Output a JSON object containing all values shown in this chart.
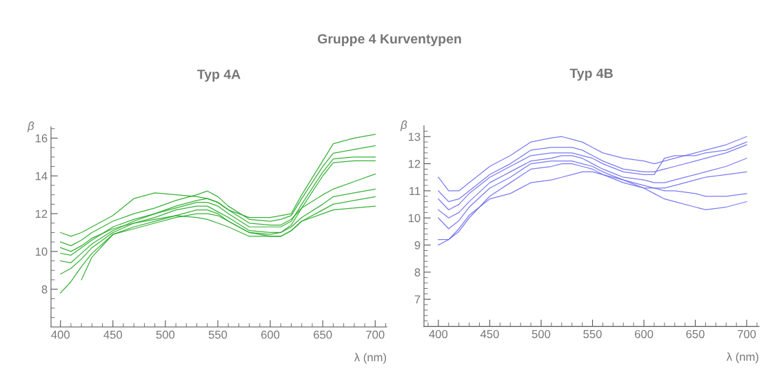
{
  "chart_data": [
    {
      "type": "line",
      "title": "Typ 4A",
      "xlabel": "λ (nm)",
      "ylabel": "β",
      "annotations": [
        "Gruppe 4 Kurventypen"
      ],
      "x": [
        400,
        410,
        420,
        430,
        450,
        470,
        490,
        510,
        530,
        540,
        550,
        560,
        580,
        600,
        610,
        620,
        630,
        650,
        660,
        680,
        700
      ],
      "series": [
        {
          "color": "#1fa81f",
          "values": [
            11.0,
            10.8,
            11.0,
            11.3,
            11.9,
            12.8,
            13.1,
            13.0,
            12.9,
            12.8,
            12.6,
            12.2,
            11.8,
            11.8,
            11.9,
            12.0,
            13.0,
            14.8,
            15.7,
            16.0,
            16.2
          ]
        },
        {
          "color": "#1fa81f",
          "values": [
            10.5,
            10.3,
            10.6,
            11.0,
            11.6,
            12.0,
            12.3,
            12.7,
            13.0,
            13.2,
            12.9,
            12.4,
            11.7,
            11.6,
            11.7,
            11.9,
            12.8,
            14.5,
            15.2,
            15.4,
            15.6
          ]
        },
        {
          "color": "#1fa81f",
          "values": [
            9.5,
            9.4,
            9.9,
            10.4,
            11.1,
            11.6,
            12.0,
            12.3,
            12.6,
            12.6,
            12.4,
            12.0,
            11.3,
            11.3,
            11.3,
            11.6,
            12.5,
            14.2,
            14.9,
            15.0,
            15.0
          ]
        },
        {
          "color": "#1fa81f",
          "values": [
            8.8,
            9.1,
            9.6,
            10.2,
            11.0,
            11.5,
            11.8,
            12.2,
            12.4,
            12.4,
            12.1,
            11.8,
            11.1,
            11.0,
            11.0,
            11.4,
            12.3,
            14.0,
            14.7,
            14.8,
            14.8
          ]
        },
        {
          "color": "#1fa81f",
          "values": [
            7.8,
            8.4,
            9.2,
            9.9,
            10.9,
            11.3,
            11.6,
            11.9,
            12.2,
            12.2,
            12.0,
            11.6,
            11.0,
            10.9,
            11.0,
            11.3,
            11.8,
            12.5,
            12.9,
            13.1,
            13.3
          ]
        },
        {
          "color": "#1fa81f",
          "values": [
            null,
            null,
            8.5,
            9.7,
            10.9,
            11.2,
            11.5,
            11.8,
            12.0,
            12.0,
            11.9,
            11.6,
            11.0,
            10.8,
            10.8,
            11.1,
            11.6,
            12.0,
            12.2,
            12.3,
            12.4
          ]
        },
        {
          "color": "#1fa81f",
          "values": [
            10.2,
            10.0,
            10.3,
            10.7,
            11.2,
            11.5,
            11.7,
            11.9,
            11.8,
            11.7,
            11.5,
            11.3,
            10.8,
            10.8,
            10.8,
            11.1,
            11.6,
            12.2,
            12.5,
            12.7,
            12.9
          ]
        },
        {
          "color": "#1fa81f",
          "values": [
            9.9,
            9.8,
            10.2,
            10.6,
            11.3,
            11.7,
            12.0,
            12.4,
            12.7,
            12.8,
            12.6,
            12.2,
            11.5,
            11.4,
            11.4,
            11.7,
            12.3,
            13.0,
            13.3,
            13.7,
            14.1
          ]
        }
      ],
      "xlim": [
        391,
        711
      ],
      "ylim": [
        6.0,
        16.6
      ],
      "xticks": [
        400,
        {
          "value": 410,
          "label": null
        },
        {
          "value": 420,
          "label": null
        },
        {
          "value": 430,
          "label": null
        },
        {
          "value": 440,
          "label": null
        },
        450,
        {
          "value": 460,
          "label": null
        },
        {
          "value": 470,
          "label": null
        },
        {
          "value": 480,
          "label": null
        },
        {
          "value": 490,
          "label": null
        },
        500,
        {
          "value": 510,
          "label": null
        },
        {
          "value": 520,
          "label": null
        },
        {
          "value": 530,
          "label": null
        },
        {
          "value": 540,
          "label": null
        },
        550,
        {
          "value": 560,
          "label": null
        },
        {
          "value": 570,
          "label": null
        },
        {
          "value": 580,
          "label": null
        },
        {
          "value": 590,
          "label": null
        },
        600,
        {
          "value": 610,
          "label": null
        },
        {
          "value": 620,
          "label": null
        },
        {
          "value": 630,
          "label": null
        },
        {
          "value": 640,
          "label": null
        },
        650,
        {
          "value": 660,
          "label": null
        },
        {
          "value": 670,
          "label": null
        },
        {
          "value": 680,
          "label": null
        },
        {
          "value": 690,
          "label": null
        },
        700,
        {
          "value": 710,
          "label": null
        }
      ],
      "yticks": [
        {
          "value": 6.5,
          "label": null
        },
        {
          "value": 7,
          "label": null
        },
        {
          "value": 7.5,
          "label": null
        },
        8,
        {
          "value": 8.5,
          "label": null
        },
        {
          "value": 9,
          "label": null
        },
        {
          "value": 9.5,
          "label": null
        },
        10,
        {
          "value": 10.5,
          "label": null
        },
        {
          "value": 11,
          "label": null
        },
        {
          "value": 11.5,
          "label": null
        },
        12,
        {
          "value": 12.5,
          "label": null
        },
        {
          "value": 13,
          "label": null
        },
        {
          "value": 13.5,
          "label": null
        },
        14,
        {
          "value": 14.5,
          "label": null
        },
        {
          "value": 15,
          "label": null
        },
        {
          "value": 15.5,
          "label": null
        },
        16,
        {
          "value": 16.5,
          "label": null
        }
      ],
      "grid": false,
      "legend": false,
      "marker": "none",
      "line_style": "solid"
    },
    {
      "type": "line",
      "title": "Typ 4B",
      "xlabel": "λ (nm)",
      "ylabel": "β",
      "x": [
        400,
        410,
        420,
        430,
        450,
        470,
        490,
        510,
        520,
        530,
        540,
        550,
        560,
        580,
        600,
        610,
        620,
        630,
        650,
        660,
        680,
        700
      ],
      "series": [
        {
          "color": "#6b6bf0",
          "values": [
            11.5,
            11.0,
            11.0,
            11.3,
            11.9,
            12.3,
            12.8,
            12.95,
            13.0,
            12.9,
            12.8,
            12.6,
            12.4,
            12.2,
            12.1,
            12.0,
            12.1,
            12.2,
            12.4,
            12.5,
            12.7,
            13.0
          ]
        },
        {
          "color": "#6b6bf0",
          "values": [
            11.0,
            10.6,
            10.7,
            11.0,
            11.6,
            12.0,
            12.5,
            12.6,
            12.6,
            12.6,
            12.5,
            12.3,
            12.1,
            11.8,
            11.7,
            11.7,
            11.8,
            11.9,
            12.1,
            12.2,
            12.4,
            12.7
          ]
        },
        {
          "color": "#6b6bf0",
          "values": [
            10.3,
            10.0,
            10.2,
            10.6,
            11.3,
            11.7,
            12.1,
            12.2,
            12.3,
            12.3,
            12.2,
            12.0,
            11.8,
            11.5,
            11.4,
            11.3,
            11.3,
            11.4,
            11.6,
            11.7,
            11.9,
            12.2
          ]
        },
        {
          "color": "#6b6bf0",
          "values": [
            9.2,
            9.2,
            9.5,
            10.0,
            10.8,
            11.3,
            11.8,
            11.9,
            12.0,
            12.0,
            11.9,
            11.8,
            11.6,
            11.3,
            11.1,
            11.1,
            11.1,
            11.2,
            11.4,
            11.5,
            11.6,
            11.7
          ]
        },
        {
          "color": "#6b6bf0",
          "values": [
            9.0,
            9.2,
            9.6,
            10.1,
            10.7,
            10.9,
            11.3,
            11.4,
            11.5,
            11.6,
            11.7,
            11.7,
            11.6,
            11.4,
            11.1,
            10.9,
            10.7,
            10.6,
            10.4,
            10.3,
            10.4,
            10.6
          ]
        },
        {
          "color": "#6b6bf0",
          "values": [
            10.0,
            9.6,
            9.9,
            10.4,
            11.1,
            11.5,
            12.0,
            12.1,
            12.1,
            12.1,
            12.0,
            11.9,
            11.7,
            11.4,
            11.2,
            11.1,
            11.0,
            11.0,
            10.9,
            10.8,
            10.8,
            10.9
          ]
        },
        {
          "color": "#6b6bf0",
          "values": [
            10.7,
            10.3,
            10.5,
            10.9,
            11.5,
            11.9,
            12.3,
            12.4,
            12.4,
            12.4,
            12.3,
            12.2,
            12.0,
            11.7,
            11.6,
            11.6,
            12.2,
            12.3,
            12.3,
            12.4,
            12.5,
            12.8
          ]
        }
      ],
      "xlim": [
        386,
        712
      ],
      "ylim": [
        6.0,
        13.4
      ],
      "xticks": [
        {
          "value": 390,
          "label": null
        },
        400,
        {
          "value": 410,
          "label": null
        },
        {
          "value": 420,
          "label": null
        },
        {
          "value": 430,
          "label": null
        },
        {
          "value": 440,
          "label": null
        },
        450,
        {
          "value": 460,
          "label": null
        },
        {
          "value": 470,
          "label": null
        },
        {
          "value": 480,
          "label": null
        },
        {
          "value": 490,
          "label": null
        },
        500,
        {
          "value": 510,
          "label": null
        },
        {
          "value": 520,
          "label": null
        },
        {
          "value": 530,
          "label": null
        },
        {
          "value": 540,
          "label": null
        },
        550,
        {
          "value": 560,
          "label": null
        },
        {
          "value": 570,
          "label": null
        },
        {
          "value": 580,
          "label": null
        },
        {
          "value": 590,
          "label": null
        },
        600,
        {
          "value": 610,
          "label": null
        },
        {
          "value": 620,
          "label": null
        },
        {
          "value": 630,
          "label": null
        },
        {
          "value": 640,
          "label": null
        },
        650,
        {
          "value": 660,
          "label": null
        },
        {
          "value": 670,
          "label": null
        },
        {
          "value": 680,
          "label": null
        },
        {
          "value": 690,
          "label": null
        },
        700,
        {
          "value": 710,
          "label": null
        }
      ],
      "yticks": [
        {
          "value": 6.2,
          "label": null
        },
        {
          "value": 6.4,
          "label": null
        },
        {
          "value": 6.6,
          "label": null
        },
        {
          "value": 6.8,
          "label": null
        },
        7,
        {
          "value": 7.2,
          "label": null
        },
        {
          "value": 7.4,
          "label": null
        },
        {
          "value": 7.6,
          "label": null
        },
        {
          "value": 7.8,
          "label": null
        },
        8,
        {
          "value": 8.2,
          "label": null
        },
        {
          "value": 8.4,
          "label": null
        },
        {
          "value": 8.6,
          "label": null
        },
        {
          "value": 8.8,
          "label": null
        },
        9,
        {
          "value": 9.2,
          "label": null
        },
        {
          "value": 9.4,
          "label": null
        },
        {
          "value": 9.6,
          "label": null
        },
        {
          "value": 9.8,
          "label": null
        },
        10,
        {
          "value": 10.2,
          "label": null
        },
        {
          "value": 10.4,
          "label": null
        },
        {
          "value": 10.6,
          "label": null
        },
        {
          "value": 10.8,
          "label": null
        },
        11,
        {
          "value": 11.2,
          "label": null
        },
        {
          "value": 11.4,
          "label": null
        },
        {
          "value": 11.6,
          "label": null
        },
        {
          "value": 11.8,
          "label": null
        },
        12,
        {
          "value": 12.2,
          "label": null
        },
        {
          "value": 12.4,
          "label": null
        },
        {
          "value": 12.6,
          "label": null
        },
        {
          "value": 12.8,
          "label": null
        },
        13,
        {
          "value": 13.2,
          "label": null
        }
      ],
      "grid": false,
      "legend": false,
      "marker": "none",
      "line_style": "solid"
    }
  ]
}
